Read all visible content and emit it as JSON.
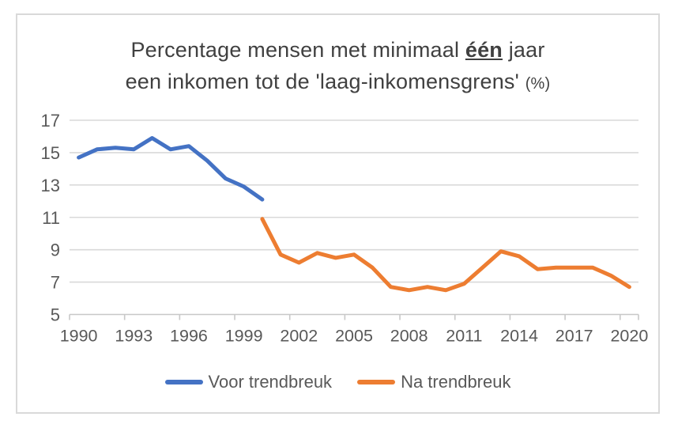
{
  "title": {
    "line1_before": "Percentage mensen met minimaal ",
    "line1_emphasis": "één",
    "line1_after": " jaar",
    "line2_main": "een inkomen tot de 'laag-inkomensgrens' ",
    "line2_suffix": "(%)",
    "full": "Percentage mensen met minimaal één jaar een inkomen tot de 'laag-inkomensgrens' (%)"
  },
  "legend": [
    {
      "label": "Voor trendbreuk",
      "color": "#4472C4"
    },
    {
      "label": "Na trendbreuk",
      "color": "#ED7D31"
    }
  ],
  "colors": {
    "blue_series": "#4472C4",
    "orange_series": "#ED7D31",
    "gridline": "#d9d9d9",
    "axis": "#c8c8c8",
    "tick_label": "#595959",
    "title_text": "#404040",
    "frame_border": "#d9d9d9",
    "background": "#ffffff"
  },
  "chart_data": {
    "type": "line",
    "title": "Percentage mensen met minimaal één jaar een inkomen tot de 'laag-inkomensgrens' (%)",
    "xlabel": "",
    "ylabel": "",
    "xlim": [
      1989.5,
      2020.5
    ],
    "ylim": [
      5,
      17
    ],
    "yticks": [
      5,
      7,
      9,
      11,
      13,
      15,
      17
    ],
    "xticks": [
      1990,
      1993,
      1996,
      1999,
      2002,
      2005,
      2008,
      2011,
      2014,
      2017,
      2020
    ],
    "grid": true,
    "legend_position": "bottom",
    "series": [
      {
        "name": "Voor trendbreuk",
        "color": "#4472C4",
        "x": [
          1990,
          1991,
          1992,
          1993,
          1994,
          1995,
          1996,
          1997,
          1998,
          1999,
          2000
        ],
        "values": [
          14.7,
          15.2,
          15.3,
          15.2,
          15.9,
          15.2,
          15.4,
          14.5,
          13.4,
          12.9,
          12.1
        ]
      },
      {
        "name": "Na trendbreuk",
        "color": "#ED7D31",
        "x": [
          2000,
          2001,
          2002,
          2003,
          2004,
          2005,
          2006,
          2007,
          2008,
          2009,
          2010,
          2011,
          2012,
          2013,
          2014,
          2015,
          2016,
          2017,
          2018,
          2019,
          2020
        ],
        "values": [
          10.9,
          8.7,
          8.2,
          8.8,
          8.5,
          8.7,
          7.9,
          6.7,
          6.5,
          6.7,
          6.5,
          6.9,
          7.9,
          8.9,
          8.6,
          7.8,
          7.9,
          7.9,
          7.9,
          7.4,
          6.7
        ]
      }
    ]
  }
}
